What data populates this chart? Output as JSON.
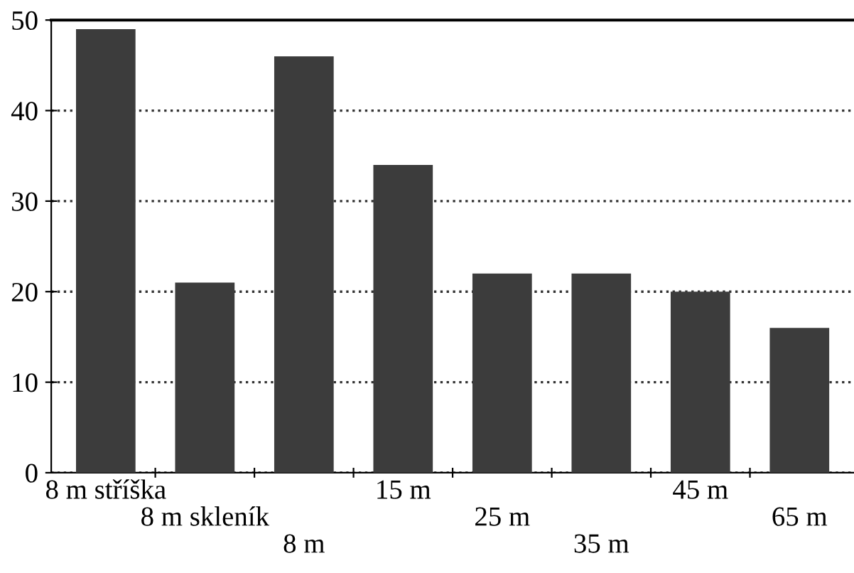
{
  "chart_data": {
    "type": "bar",
    "categories": [
      "8 m stříška",
      "8 m skleník",
      "8 m",
      "15 m",
      "25 m",
      "35 m",
      "45 m",
      "65 m"
    ],
    "values": [
      49,
      21,
      46,
      34,
      22,
      22,
      20,
      16
    ],
    "color": "#3c3c3c",
    "ylim": [
      0,
      50
    ],
    "yticks": [
      0,
      10,
      20,
      30,
      40,
      50
    ],
    "grid": "y",
    "line_style": "dotted"
  }
}
